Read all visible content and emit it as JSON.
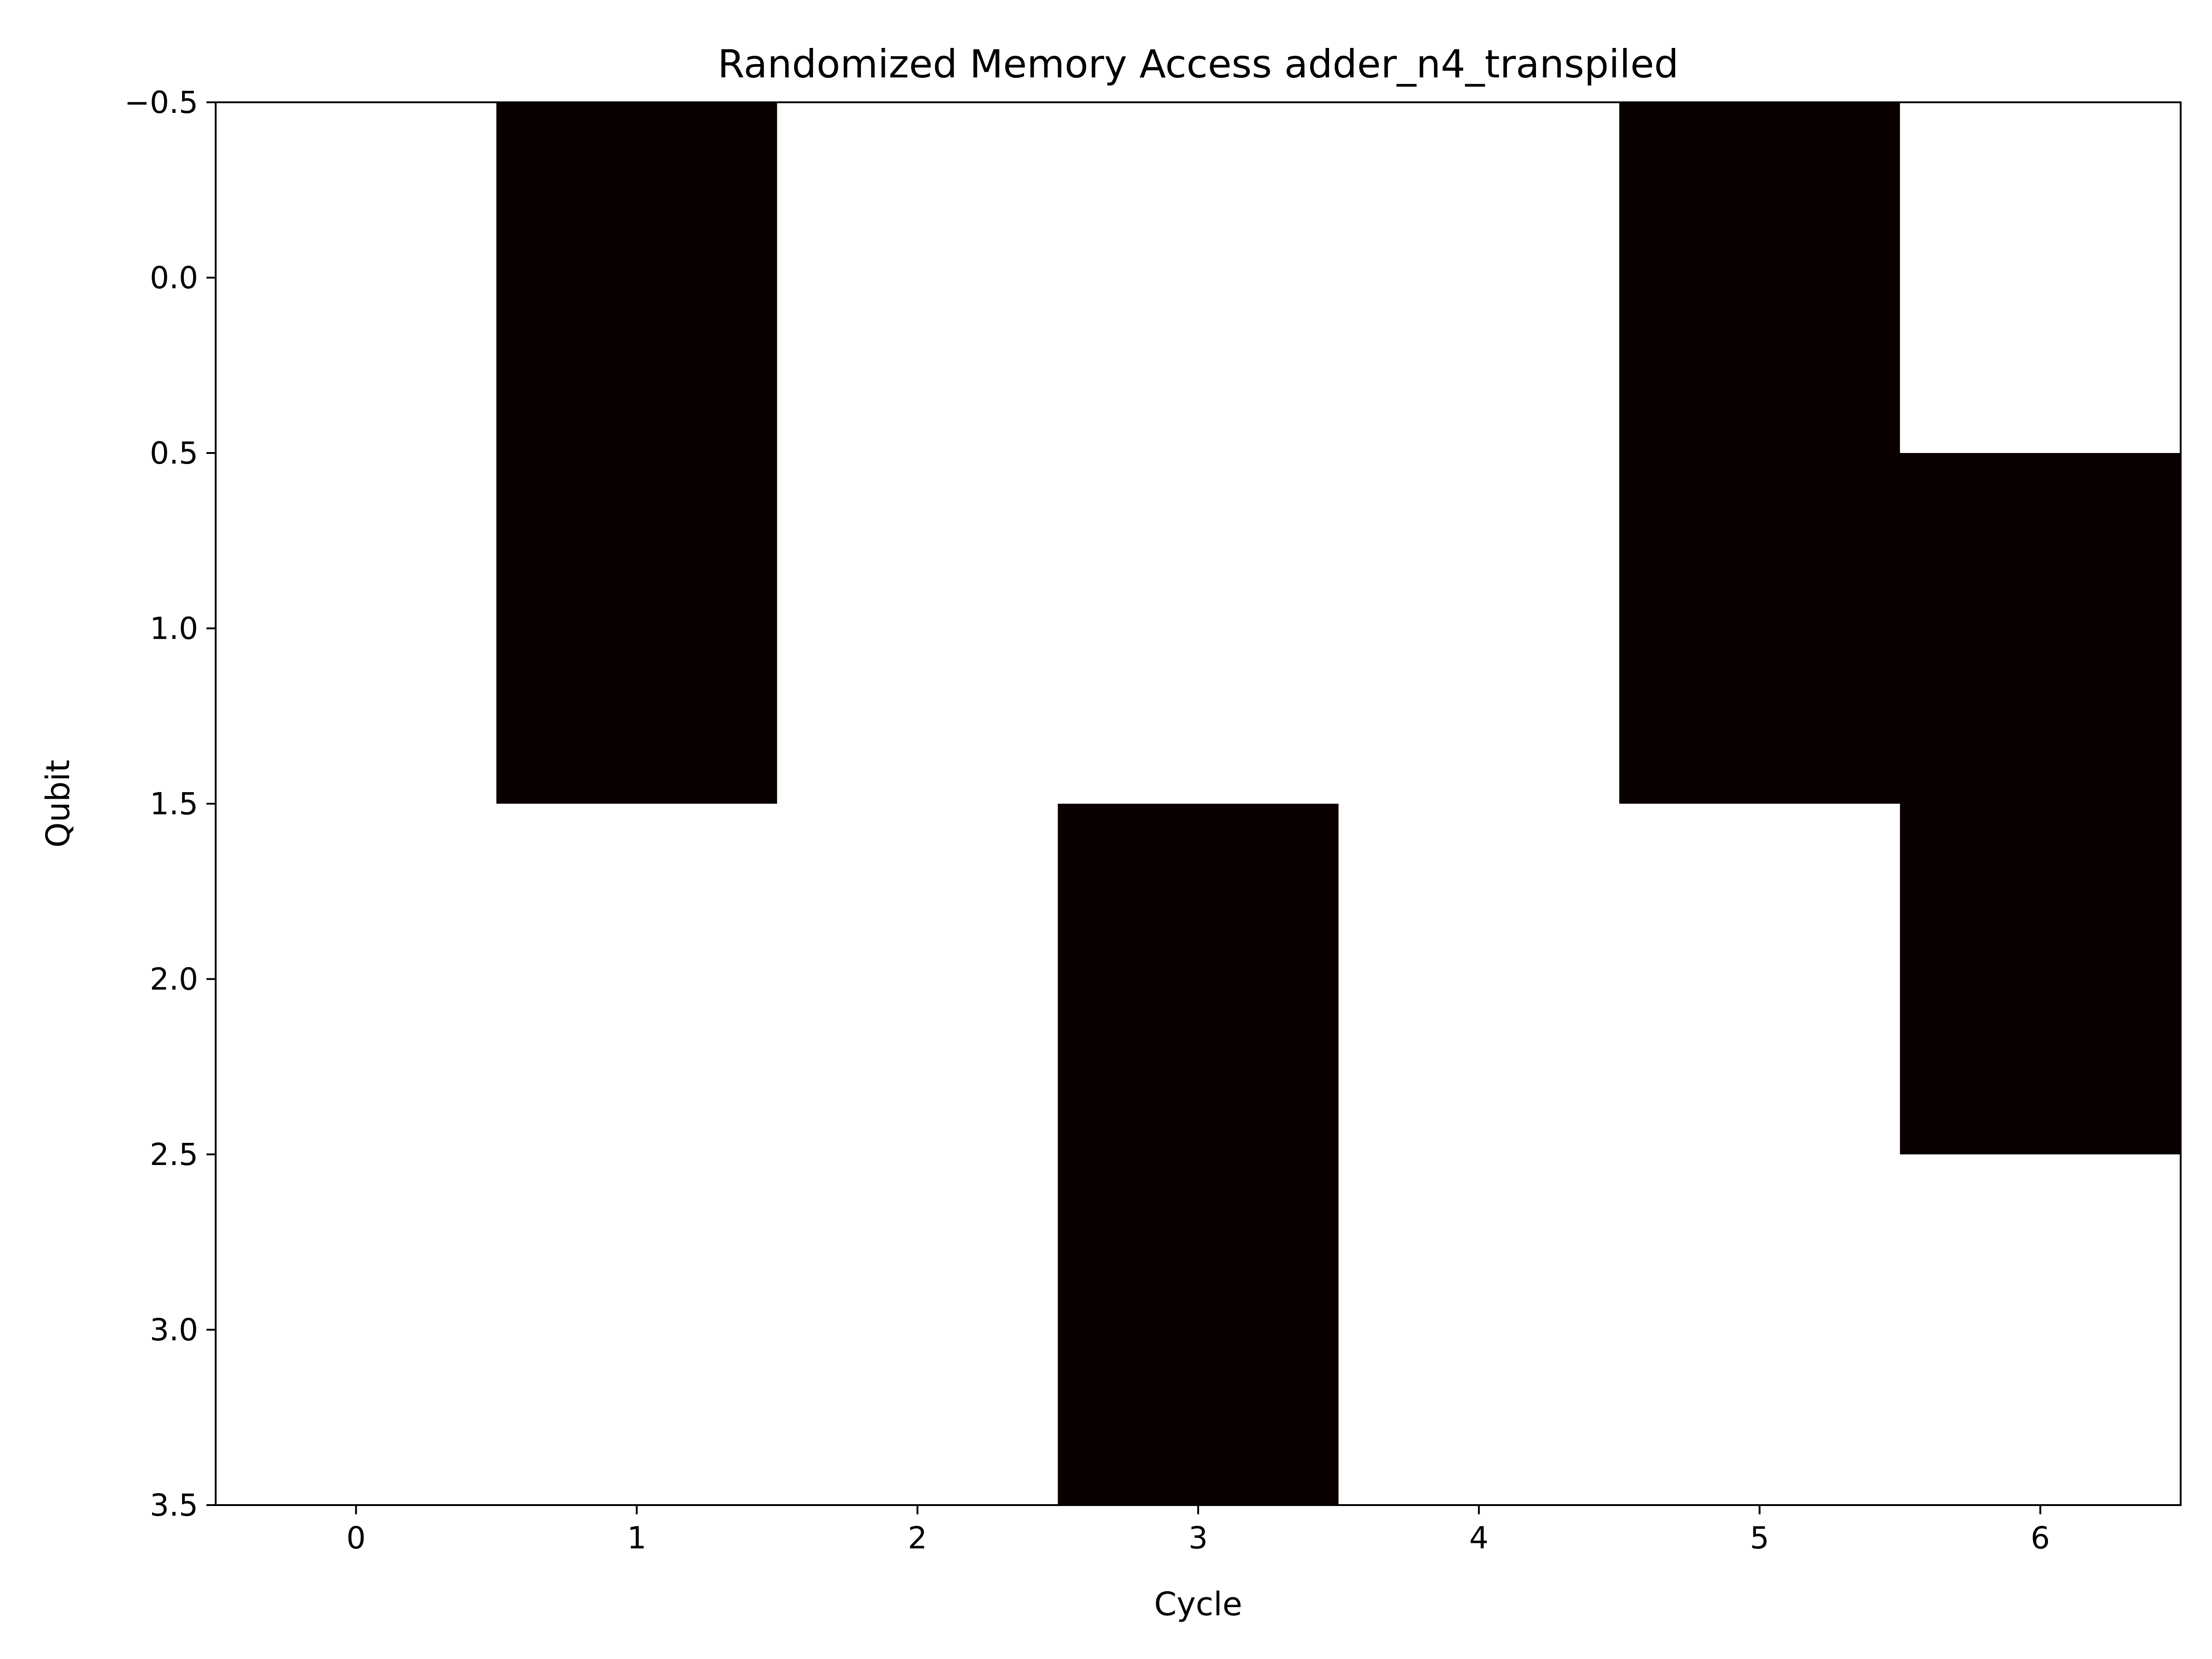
{
  "chart_data": {
    "type": "heatmap",
    "title": "Randomized Memory Access adder_n4_transpiled",
    "xlabel": "Cycle",
    "ylabel": "Qubit",
    "x_ticks": [
      "0",
      "1",
      "2",
      "3",
      "4",
      "5",
      "6"
    ],
    "y_ticks": [
      "−0.5",
      "0.0",
      "0.5",
      "1.0",
      "1.5",
      "2.0",
      "2.5",
      "3.0",
      "3.5"
    ],
    "y_tick_values": [
      -0.5,
      0.0,
      0.5,
      1.0,
      1.5,
      2.0,
      2.5,
      3.0,
      3.5
    ],
    "xlim": [
      -0.5,
      6.5
    ],
    "ylim": [
      3.5,
      -0.5
    ],
    "rows": 4,
    "cols": 7,
    "values": [
      [
        0,
        1,
        0,
        0,
        0,
        1,
        0
      ],
      [
        0,
        1,
        0,
        0,
        0,
        1,
        1
      ],
      [
        0,
        0,
        0,
        1,
        0,
        0,
        1
      ],
      [
        0,
        0,
        0,
        1,
        0,
        0,
        0
      ]
    ],
    "colors": {
      "active": "#0a0000",
      "inactive": "#ffffff",
      "axis": "#000000"
    },
    "grid": false,
    "legend": "none"
  }
}
